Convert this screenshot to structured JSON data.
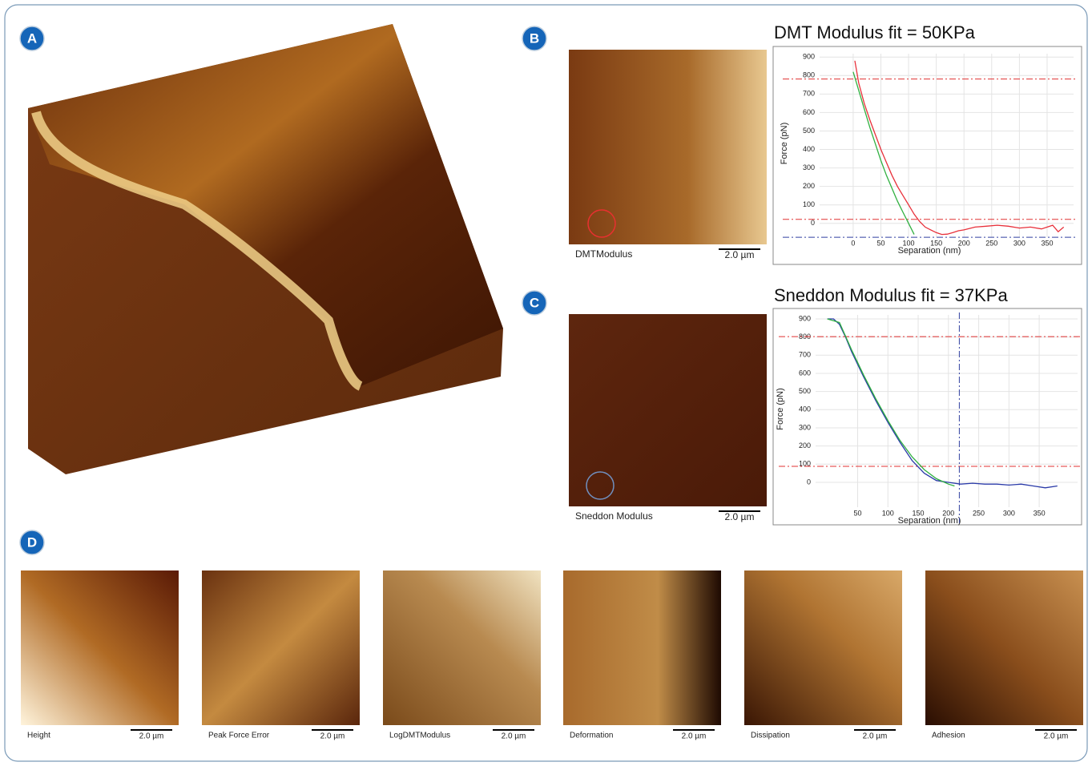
{
  "panel_labels": [
    "A",
    "B",
    "C",
    "D"
  ],
  "images": [
    {
      "caption": "DMTModulus",
      "scale": "2.0 µm"
    },
    {
      "caption": "Sneddon Modulus",
      "scale": "2.0 µm"
    },
    {
      "caption": "Height",
      "scale": "2.0 µm"
    },
    {
      "caption": "Peak Force Error",
      "scale": "2.0 µm"
    },
    {
      "caption": "LogDMTModulus",
      "scale": "2.0 µm"
    },
    {
      "caption": "Deformation",
      "scale": "2.0 µm"
    },
    {
      "caption": "Dissipation",
      "scale": "2.0 µm"
    },
    {
      "caption": "Adhesion",
      "scale": "2.0 µm"
    }
  ],
  "chart_data": [
    {
      "type": "line",
      "title": "DMT Modulus fit = 50KPa",
      "xlabel": "Separation (nm)",
      "ylabel": "Force (pN)",
      "xlim": [
        -130,
        405
      ],
      "ylim": [
        -170,
        940
      ],
      "xticks": [
        0,
        50,
        100,
        150,
        200,
        250,
        300,
        350
      ],
      "yticks": [
        0,
        100,
        200,
        300,
        400,
        500,
        600,
        700,
        800,
        900
      ],
      "grid": true,
      "hlines": [
        {
          "value": 781,
          "color": "#e03030"
        },
        {
          "value": 22,
          "color": "#e03030"
        },
        {
          "value": -75,
          "color": "#3040a0"
        }
      ],
      "series": [
        {
          "color": "#e8303a",
          "x": [
            3,
            10,
            20,
            30,
            40,
            50,
            60,
            70,
            80,
            90,
            100,
            110,
            120,
            130,
            140,
            150,
            160,
            170,
            180,
            190,
            200,
            220,
            240,
            260,
            280,
            300,
            320,
            340,
            360,
            370,
            380
          ],
          "values": [
            880,
            760,
            650,
            560,
            480,
            400,
            330,
            260,
            200,
            150,
            100,
            50,
            10,
            -20,
            -35,
            -50,
            -60,
            -58,
            -50,
            -40,
            -35,
            -20,
            -15,
            -10,
            -15,
            -25,
            -20,
            -30,
            -10,
            -45,
            -20
          ]
        },
        {
          "color": "#30b040",
          "x": [
            0,
            10,
            20,
            30,
            40,
            50,
            60,
            70,
            80,
            90,
            100,
            110
          ],
          "values": [
            820,
            720,
            620,
            520,
            430,
            340,
            260,
            190,
            120,
            60,
            0,
            -60
          ]
        }
      ]
    },
    {
      "type": "line",
      "title": "Sneddon Modulus fit = 37KPa",
      "xlabel": "Separation (nm)",
      "ylabel": "Force (pN)",
      "xlim": [
        -83,
        420
      ],
      "ylim": [
        -234,
        944
      ],
      "xticks": [
        50,
        100,
        150,
        200,
        250,
        300,
        350
      ],
      "yticks": [
        0,
        100,
        200,
        300,
        400,
        500,
        600,
        700,
        800,
        900
      ],
      "grid": true,
      "hlines": [
        {
          "value": 802,
          "color": "#e03030"
        },
        {
          "value": 88,
          "color": "#e03030"
        }
      ],
      "vlines": [
        {
          "value": 218,
          "color": "#3040a0"
        }
      ],
      "series": [
        {
          "color": "#2a3aa8",
          "x": [
            0,
            10,
            20,
            30,
            40,
            60,
            80,
            100,
            120,
            140,
            160,
            180,
            200,
            220,
            240,
            260,
            280,
            300,
            320,
            340,
            360,
            380
          ],
          "values": [
            900,
            900,
            870,
            800,
            720,
            580,
            450,
            330,
            220,
            120,
            50,
            10,
            0,
            -10,
            -5,
            -10,
            -10,
            -15,
            -10,
            -20,
            -30,
            -20
          ]
        },
        {
          "color": "#30b040",
          "x": [
            0,
            20,
            40,
            60,
            80,
            100,
            120,
            140,
            160,
            180,
            200,
            210
          ],
          "values": [
            900,
            880,
            730,
            590,
            460,
            340,
            230,
            140,
            70,
            20,
            -10,
            -20
          ]
        }
      ]
    }
  ]
}
